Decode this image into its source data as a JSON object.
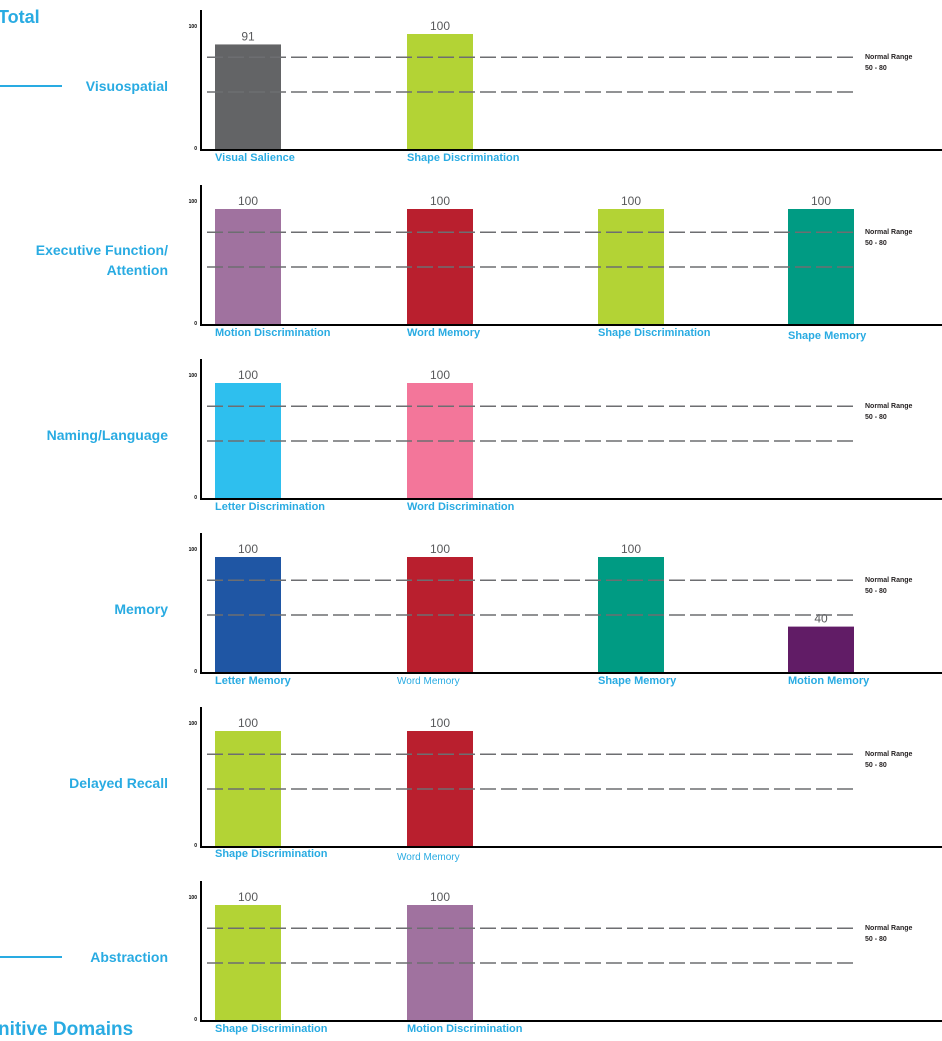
{
  "page": {
    "top_heading": "Total",
    "bottom_heading": "nitive Domains"
  },
  "colors": {
    "label": "#29abe2",
    "axis": "#000000",
    "reference_line": "#6d6e71",
    "value_text": "#58595b"
  },
  "chart_data": [
    {
      "type": "bar",
      "domain": "Visuospatial",
      "categories": [
        "Visual Salience",
        "Shape Discrimination"
      ],
      "values": [
        91,
        100
      ],
      "colors": [
        "#636466",
        "#b3d335"
      ],
      "ylim": [
        0,
        100
      ],
      "y_ticks": [
        "0",
        "100"
      ],
      "reference_lines": [
        50,
        80
      ],
      "reference_label": [
        "Normal Range",
        "50 - 80"
      ]
    },
    {
      "type": "bar",
      "domain": "Executive Function/ Attention",
      "categories": [
        "Motion Discrimination",
        "Word Memory",
        "Shape Discrimination",
        "Shape Memory"
      ],
      "values": [
        100,
        100,
        100,
        100
      ],
      "colors": [
        "#a0729f",
        "#b91f2e",
        "#b3d335",
        "#009b83"
      ],
      "ylim": [
        0,
        100
      ],
      "y_ticks": [
        "0",
        "100"
      ],
      "reference_lines": [
        50,
        80
      ],
      "reference_label": [
        "Normal Range",
        "50 - 80"
      ]
    },
    {
      "type": "bar",
      "domain": "Naming/Language",
      "categories": [
        "Letter Discrimination",
        "Word Discrimination"
      ],
      "values": [
        100,
        100
      ],
      "colors": [
        "#2ebfee",
        "#f3769a"
      ],
      "ylim": [
        0,
        100
      ],
      "y_ticks": [
        "0",
        "100"
      ],
      "reference_lines": [
        50,
        80
      ],
      "reference_label": [
        "Normal Range",
        "50 - 80"
      ]
    },
    {
      "type": "bar",
      "domain": "Memory",
      "categories": [
        "Letter Memory",
        "Word Memory",
        "Shape Memory",
        "Motion Memory"
      ],
      "values": [
        100,
        100,
        100,
        40
      ],
      "colors": [
        "#1f56a4",
        "#b91f2e",
        "#009b83",
        "#611c66"
      ],
      "ylim": [
        0,
        100
      ],
      "y_ticks": [
        "0",
        "100"
      ],
      "reference_lines": [
        50,
        80
      ],
      "reference_label": [
        "Normal Range",
        "50 - 80"
      ]
    },
    {
      "type": "bar",
      "domain": "Delayed Recall",
      "categories": [
        "Shape Discrimination",
        "Word Memory"
      ],
      "values": [
        100,
        100
      ],
      "colors": [
        "#b3d335",
        "#b91f2e"
      ],
      "ylim": [
        0,
        100
      ],
      "y_ticks": [
        "0",
        "100"
      ],
      "reference_lines": [
        50,
        80
      ],
      "reference_label": [
        "Normal Range",
        "50 - 80"
      ]
    },
    {
      "type": "bar",
      "domain": "Abstraction",
      "categories": [
        "Shape Discrimination",
        "Motion Discrimination"
      ],
      "values": [
        100,
        100
      ],
      "colors": [
        "#b3d335",
        "#a0729f"
      ],
      "ylim": [
        0,
        100
      ],
      "y_ticks": [
        "0",
        "100"
      ],
      "reference_lines": [
        50,
        80
      ],
      "reference_label": [
        "Normal Range",
        "50 - 80"
      ]
    }
  ]
}
